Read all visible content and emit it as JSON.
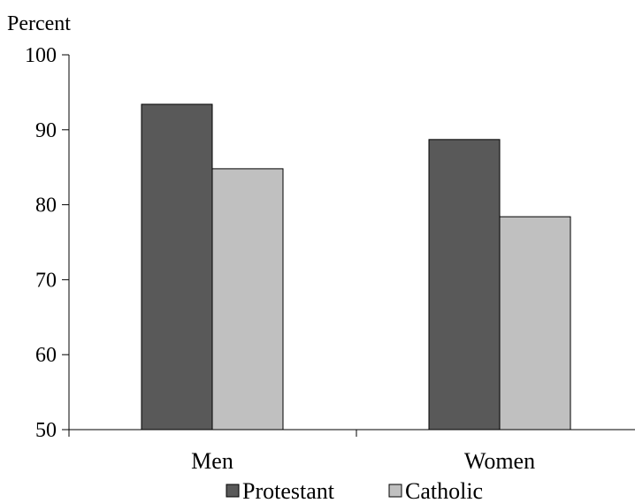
{
  "chart_data": {
    "type": "bar",
    "ylabel": "Percent",
    "ylim": [
      50,
      100
    ],
    "yticks": [
      50,
      60,
      70,
      80,
      90,
      100
    ],
    "grid": false,
    "legend_position": "bottom",
    "categories": [
      "Men",
      "Women"
    ],
    "series": [
      {
        "name": "Protestant",
        "values": [
          93.4,
          88.7
        ],
        "color": "#595959"
      },
      {
        "name": "Catholic",
        "values": [
          84.8,
          78.4
        ],
        "color": "#c0c0c0"
      }
    ]
  }
}
